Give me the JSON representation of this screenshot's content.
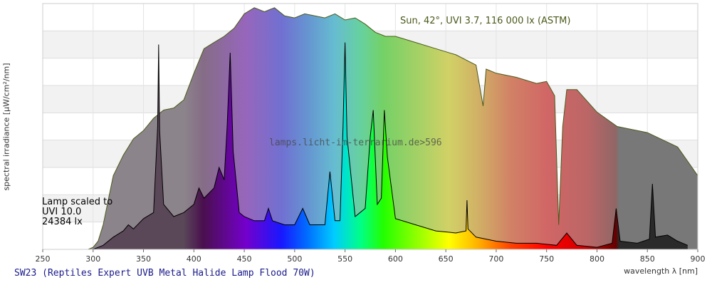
{
  "chart_data": {
    "type": "area",
    "caption": "SW23 (Reptiles Expert UVB Metal Halide Lamp Flood 70W)",
    "xlabel": "wavelength λ [nm]",
    "ylabel": "spectral irradiance [µW/cm²/nm]",
    "xlim": [
      250,
      900
    ],
    "xticks": [
      250,
      300,
      350,
      400,
      450,
      500,
      550,
      600,
      650,
      700,
      750,
      800,
      850,
      900
    ],
    "grid": true,
    "reference_label": "Sun, 42°, UVI 3.7, 116 000 lx (ASTM)",
    "watermark": "lamps.licht-im-terrarium.de>596",
    "lamp_note": [
      "Lamp scaled to",
      "UVI 10.0",
      "24384 lx"
    ],
    "colors": {
      "sun_fill": "#b0b0b0",
      "sun_outline": "#4a5a1a",
      "lamp_outline": "#000000",
      "band_light": "#f2f2f2"
    },
    "series": [
      {
        "name": "Sun, 42°, UVI 3.7, 116 000 lx (ASTM)",
        "x": [
          295,
          300,
          305,
          310,
          315,
          320,
          330,
          340,
          350,
          360,
          370,
          380,
          390,
          400,
          410,
          420,
          430,
          440,
          450,
          460,
          470,
          480,
          490,
          500,
          510,
          520,
          530,
          540,
          550,
          560,
          570,
          580,
          590,
          600,
          620,
          640,
          660,
          680,
          687,
          690,
          700,
          720,
          740,
          750,
          758,
          762,
          766,
          770,
          780,
          800,
          820,
          850,
          880,
          900
        ],
        "y": [
          0,
          1,
          4,
          12,
          24,
          36,
          46,
          54,
          58,
          64,
          68,
          69,
          73,
          86,
          98,
          101,
          104,
          108,
          115,
          118,
          116,
          118,
          114,
          113,
          115,
          114,
          113,
          115,
          112,
          113,
          110,
          106,
          104,
          104,
          101,
          98,
          95,
          90,
          70,
          88,
          86,
          84,
          81,
          82,
          75,
          12,
          60,
          78,
          78,
          67,
          60,
          57,
          50,
          36
        ]
      },
      {
        "name": "SW23 (Reptiles Expert UVB Metal Halide Lamp Flood 70W)",
        "x": [
          275,
          300,
          310,
          320,
          330,
          335,
          340,
          350,
          360,
          364,
          365,
          366,
          370,
          380,
          390,
          400,
          405,
          410,
          420,
          425,
          430,
          433,
          436,
          439,
          445,
          450,
          460,
          470,
          474,
          478,
          490,
          500,
          508,
          515,
          530,
          535,
          540,
          545,
          548,
          550,
          552,
          560,
          570,
          575,
          578,
          582,
          586,
          589,
          592,
          600,
          620,
          640,
          660,
          670,
          671,
          672,
          680,
          700,
          720,
          740,
          760,
          770,
          780,
          800,
          815,
          819,
          823,
          840,
          852,
          855,
          858,
          870,
          880,
          890
        ],
        "y": [
          0,
          0,
          2,
          6,
          9,
          12,
          10,
          15,
          18,
          60,
          100,
          58,
          22,
          16,
          18,
          22,
          30,
          25,
          30,
          40,
          34,
          60,
          96,
          48,
          18,
          16,
          14,
          14,
          20,
          14,
          12,
          12,
          20,
          12,
          12,
          38,
          14,
          14,
          60,
          101,
          55,
          16,
          20,
          55,
          68,
          22,
          25,
          68,
          45,
          15,
          12,
          9,
          8,
          9,
          24,
          10,
          6,
          4,
          3,
          3,
          2,
          8,
          2,
          1,
          3,
          20,
          4,
          3,
          5,
          32,
          6,
          7,
          4,
          2
        ]
      }
    ]
  }
}
